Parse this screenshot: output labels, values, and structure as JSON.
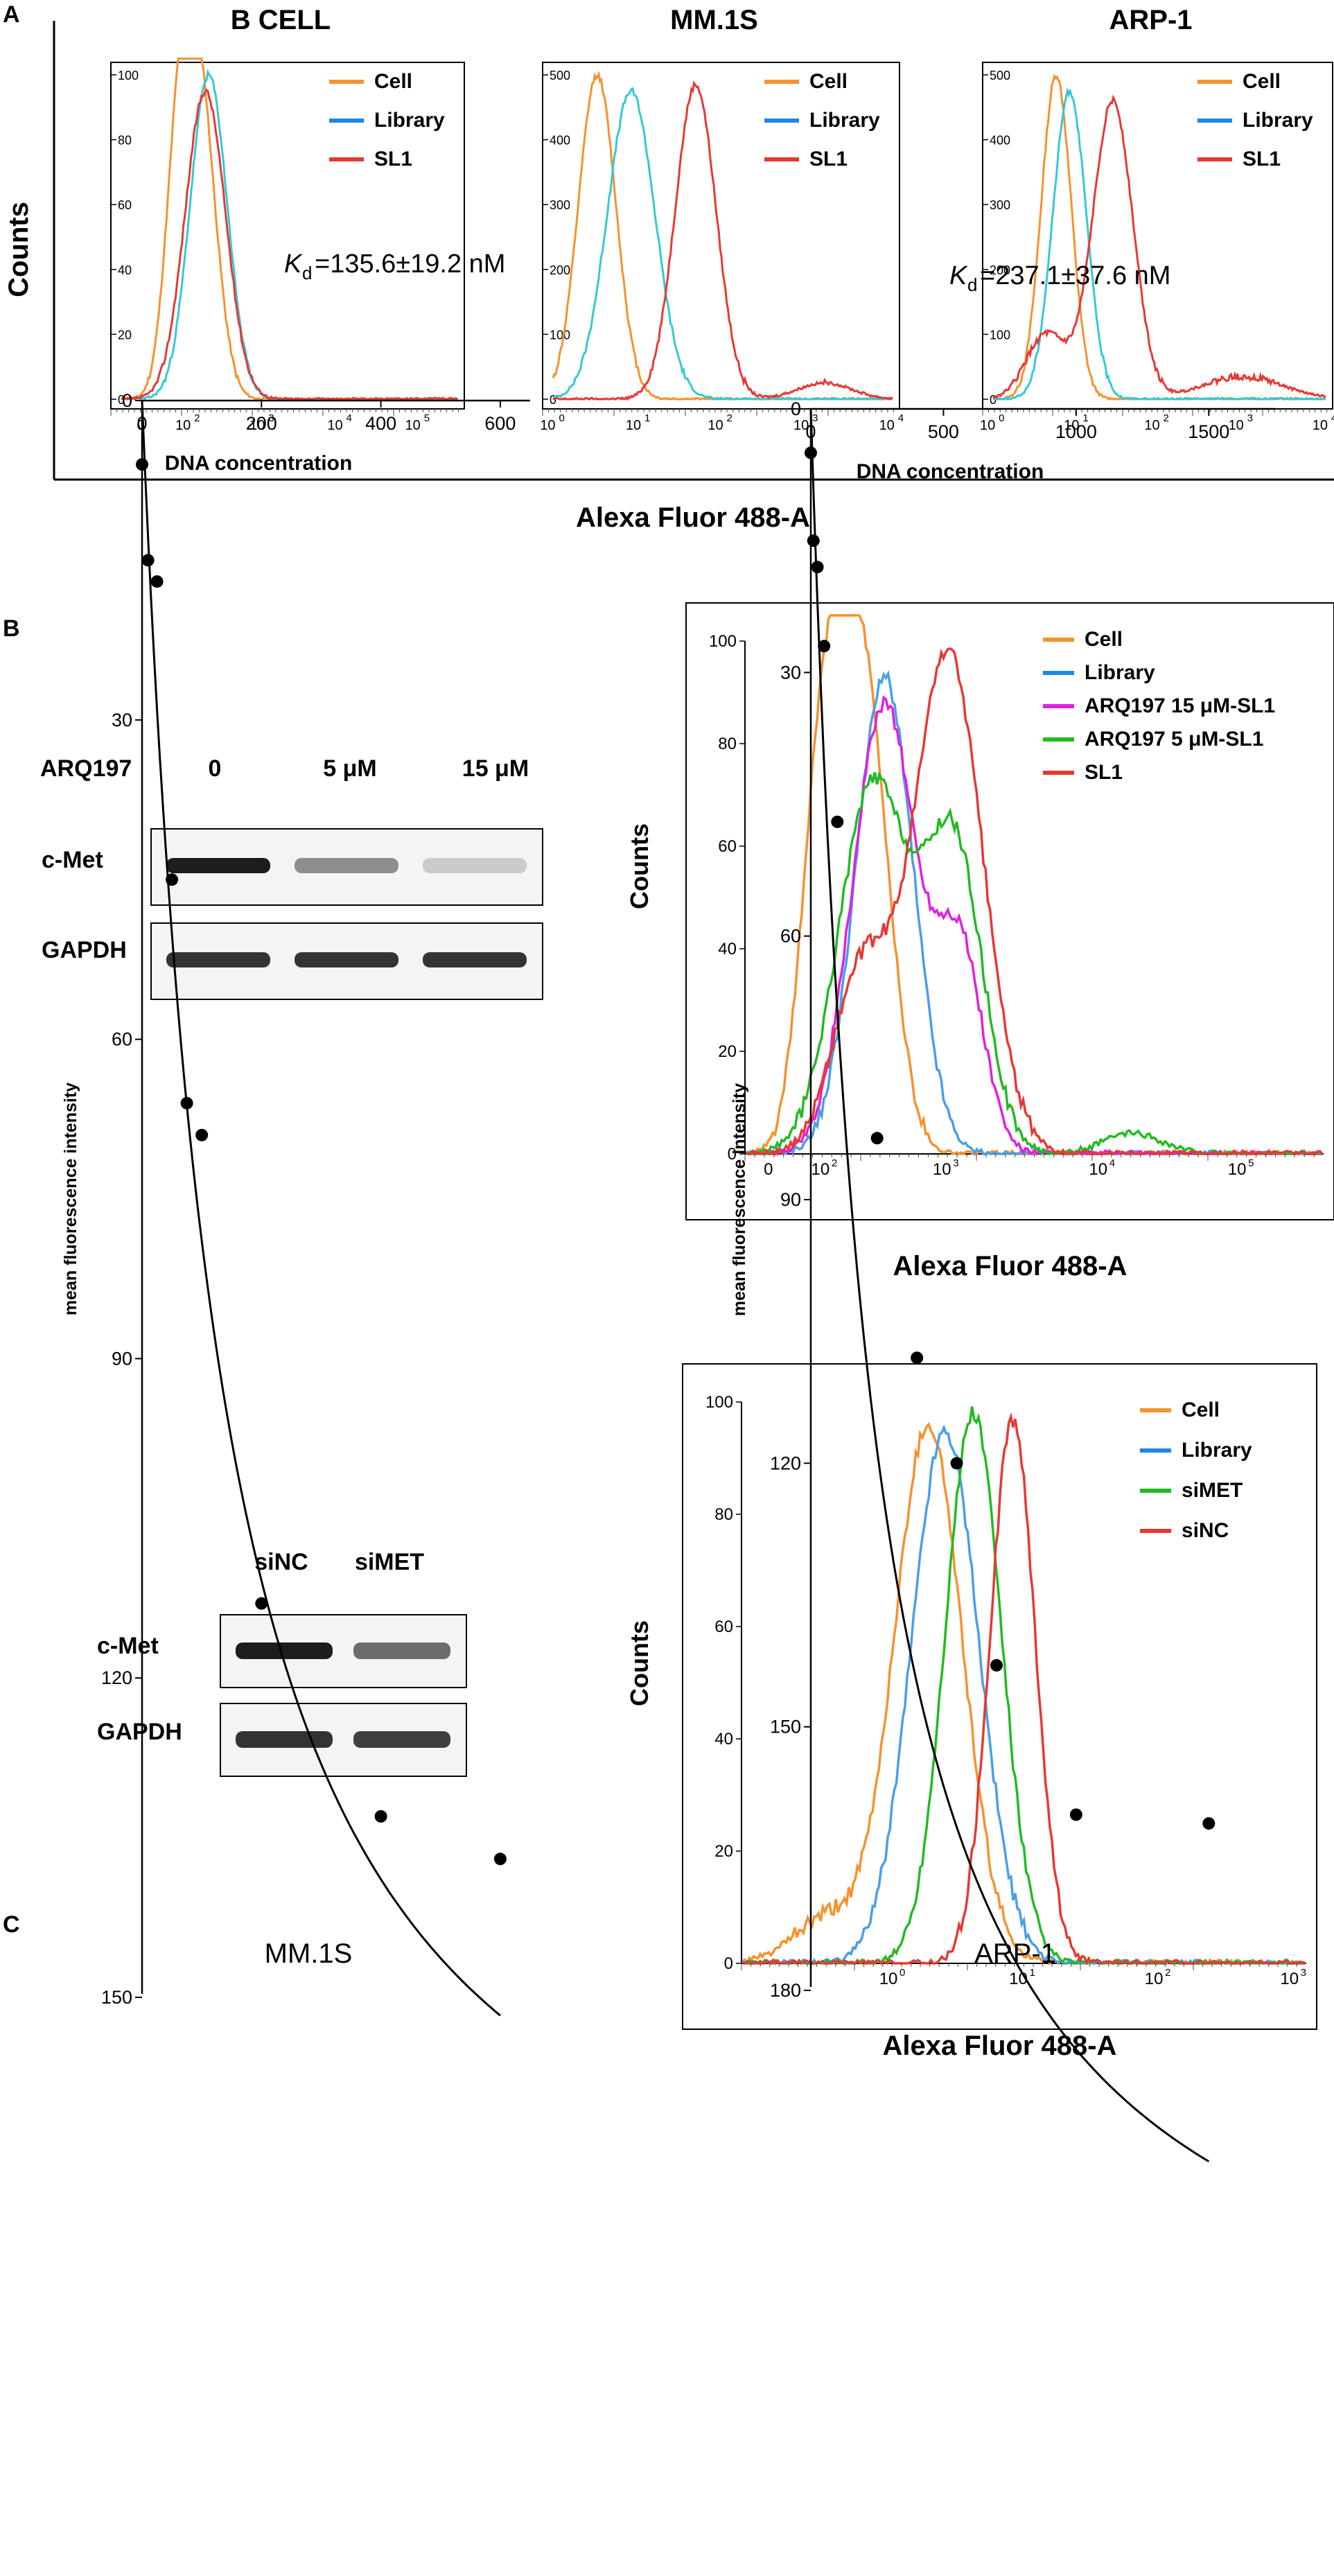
{
  "panel_letters": [
    "A",
    "B",
    "C"
  ],
  "shared": {
    "counts_label": "Counts",
    "alexa_label": "Alexa Fluor 488-A",
    "colors": {
      "cell": "#f5922f",
      "library_legend": "#1e88e5",
      "library_line": "#35c9d2",
      "sl1": "#e53935",
      "magenta": "#e020e0",
      "green": "#22bb22",
      "blue2": "#4a9ee8"
    }
  },
  "panelA": {
    "plots": [
      {
        "title": "B CELL",
        "legend": [
          "Cell",
          "Library",
          "SL1"
        ],
        "y_ticks": [
          "100",
          "80",
          "60",
          "40",
          "20",
          "0"
        ],
        "x_ticks": [
          "0",
          "10",
          "10",
          "10",
          "10"
        ],
        "x_tick_exps": [
          "",
          "2",
          "3",
          "4",
          "5"
        ]
      },
      {
        "title": "MM.1S",
        "legend": [
          "Cell",
          "Library",
          "SL1"
        ],
        "y_ticks": [
          "500",
          "400",
          "300",
          "200",
          "100",
          "0"
        ],
        "x_ticks": [
          "10",
          "10",
          "10",
          "10",
          "10"
        ],
        "x_tick_exps": [
          "0",
          "1",
          "2",
          "3",
          "4"
        ]
      },
      {
        "title": "ARP-1",
        "legend": [
          "Cell",
          "Library",
          "SL1"
        ],
        "y_ticks": [
          "500",
          "400",
          "300",
          "200",
          "100",
          "0"
        ],
        "x_ticks": [
          "10",
          "10",
          "10",
          "10",
          "10"
        ],
        "x_tick_exps": [
          "0",
          "1",
          "2",
          "3",
          "4"
        ]
      }
    ]
  },
  "panelB": {
    "blot1": {
      "treatment_label": "ARQ197",
      "conditions": [
        "0",
        "5 μM",
        "15 μM"
      ],
      "rows": [
        "c-Met",
        "GAPDH"
      ]
    },
    "blot2": {
      "conditions": [
        "siNC",
        "siMET"
      ],
      "rows": [
        "c-Met",
        "GAPDH"
      ]
    },
    "flow1": {
      "legend": [
        "Cell",
        "Library",
        "ARQ197  15 μM-SL1",
        "ARQ197  5 μM-SL1",
        "SL1"
      ],
      "y_ticks": [
        "100",
        "80",
        "60",
        "40",
        "20",
        "0"
      ],
      "x_ticks": [
        "0",
        "10",
        "10",
        "10",
        "10"
      ],
      "x_tick_exps": [
        "",
        "2",
        "3",
        "4",
        "5"
      ]
    },
    "flow2": {
      "legend": [
        "Cell",
        "Library",
        "siMET",
        "siNC"
      ],
      "y_ticks": [
        "100",
        "80",
        "60",
        "40",
        "20",
        "0"
      ],
      "x_ticks": [
        "10",
        "10",
        "10",
        "10"
      ],
      "x_tick_exps": [
        "0",
        "1",
        "2",
        "3"
      ]
    }
  },
  "chart_data": [
    {
      "type": "scatter",
      "title": "MM.1S",
      "xlabel": "DNA concentration",
      "ylabel": "mean fluorescence intensity",
      "x": [
        0,
        10,
        25,
        50,
        75,
        100,
        200,
        400,
        600
      ],
      "y": [
        6,
        15,
        17,
        45,
        66,
        69,
        113,
        133,
        137
      ],
      "fit": {
        "model": "one-site binding",
        "Bmax": 186,
        "Kd": 135.6
      },
      "annotation": {
        "K": "K",
        "sub": "d",
        "rest": "=135.6±19.2 nM"
      },
      "xlim": [
        0,
        650
      ],
      "ylim": [
        0,
        150
      ],
      "xticks": [
        0,
        200,
        400,
        600
      ],
      "yticks": [
        0,
        30,
        60,
        90,
        120,
        150
      ],
      "grid": false
    },
    {
      "type": "scatter",
      "title": "ARP-1",
      "xlabel": "DNA concentration",
      "ylabel": "mean fluorescence intensity",
      "x": [
        0,
        10,
        25,
        50,
        100,
        250,
        400,
        550,
        700,
        1000,
        1500
      ],
      "y": [
        5,
        15,
        18,
        27,
        47,
        83,
        108,
        120,
        143,
        160,
        161
      ],
      "fit": {
        "model": "one-site binding",
        "Bmax": 231,
        "Kd": 237.1
      },
      "annotation": {
        "K": "K",
        "sub": "d",
        "rest": "=237.1±37.6 nM"
      },
      "xlim": [
        0,
        1750
      ],
      "ylim": [
        0,
        180
      ],
      "xticks": [
        0,
        500,
        1000,
        1500
      ],
      "yticks": [
        0,
        30,
        60,
        90,
        120,
        150,
        180
      ],
      "grid": false
    }
  ]
}
